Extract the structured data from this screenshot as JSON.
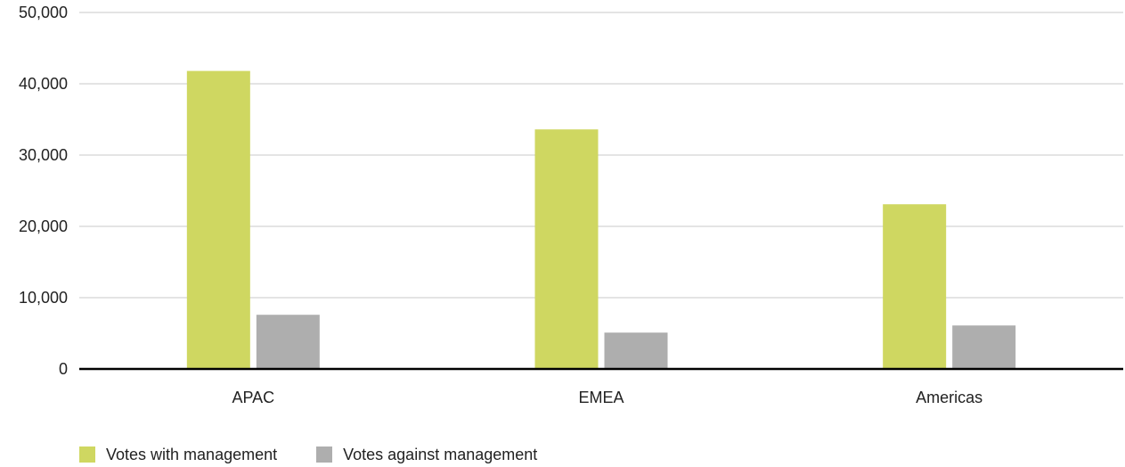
{
  "chart_data": {
    "type": "bar",
    "categories": [
      "APAC",
      "EMEA",
      "Americas"
    ],
    "series": [
      {
        "name": "Votes with management",
        "color": "#cfd761",
        "values": [
          41800,
          33600,
          23100
        ]
      },
      {
        "name": "Votes against management",
        "color": "#aeaeae",
        "values": [
          7600,
          5100,
          6100
        ]
      }
    ],
    "title": "",
    "xlabel": "",
    "ylabel": "",
    "ylim": [
      0,
      50000
    ],
    "yticks": [
      0,
      10000,
      20000,
      30000,
      40000,
      50000
    ],
    "ytick_labels": [
      "0",
      "10,000",
      "20,000",
      "30,000",
      "40,000",
      "50,000"
    ],
    "grid": true,
    "gridline_color": "#c8c8c8",
    "baseline_color": "#000000",
    "legend_position": "bottom-left"
  }
}
